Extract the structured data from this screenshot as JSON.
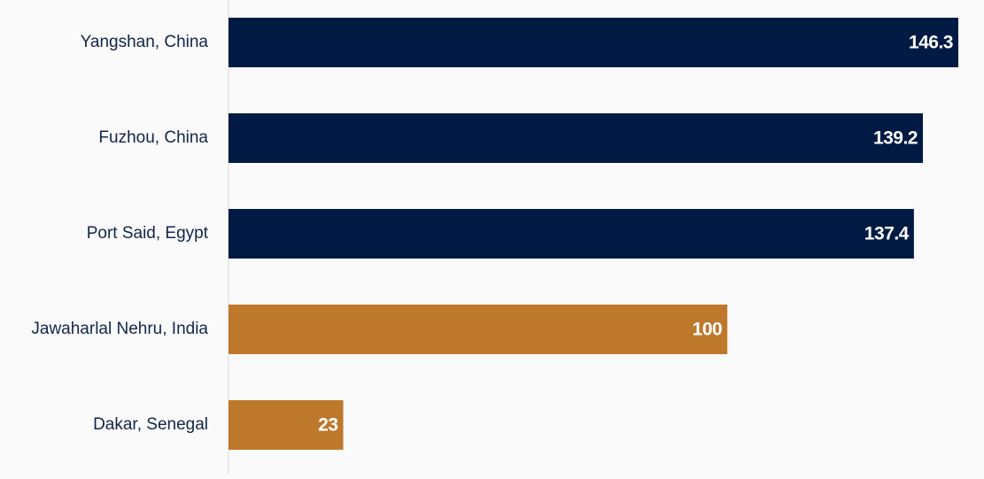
{
  "chart_data": {
    "type": "bar",
    "orientation": "horizontal",
    "categories": [
      "Yangshan, China",
      "Fuzhou, China",
      "Port Said, Egypt",
      "Jawaharlal Nehru, India",
      "Dakar, Senegal"
    ],
    "values": [
      146.3,
      139.2,
      137.4,
      100,
      23
    ],
    "colors": [
      "#001a43",
      "#001a43",
      "#001a43",
      "#be782c",
      "#be782c"
    ]
  }
}
